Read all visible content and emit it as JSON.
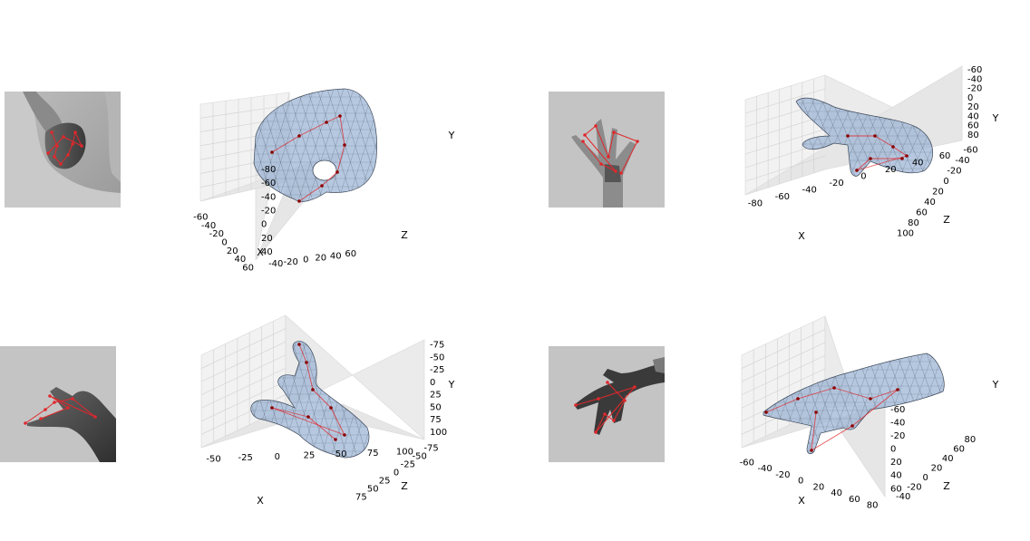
{
  "chart_data": [
    {
      "type": "scatter",
      "panel": "top-left",
      "xlabel": "X",
      "ylabel": "Y",
      "zlabel": "Z",
      "x_ticks": [
        "-60",
        "-40",
        "-20",
        "0",
        "20",
        "40",
        "60"
      ],
      "y_ticks": [
        "-80",
        "-60",
        "-40",
        "-20",
        "0",
        "20",
        "40"
      ],
      "z_ticks": [
        "-40",
        "-20",
        "0",
        "20",
        "40",
        "60"
      ],
      "y_axis_inverted": true
    },
    {
      "type": "scatter",
      "panel": "top-right",
      "xlabel": "X",
      "ylabel": "Y",
      "zlabel": "Z",
      "x_ticks": [
        "-80",
        "-60",
        "-40",
        "-20",
        "0",
        "20",
        "40",
        "60"
      ],
      "y_ticks": [
        "-60",
        "-40",
        "-20",
        "0",
        "20",
        "40",
        "60",
        "80"
      ],
      "z_ticks": [
        "-60",
        "-40",
        "-20",
        "0",
        "20",
        "40",
        "60",
        "80",
        "100"
      ],
      "y_axis_inverted": true
    },
    {
      "type": "scatter",
      "panel": "bottom-left",
      "xlabel": "X",
      "ylabel": "Y",
      "zlabel": "Z",
      "x_ticks": [
        "-50",
        "-25",
        "0",
        "25",
        "50",
        "75",
        "100"
      ],
      "y_ticks": [
        "-75",
        "-50",
        "-25",
        "0",
        "25",
        "50",
        "75",
        "100"
      ],
      "z_ticks": [
        "-75",
        "-50",
        "-25",
        "0",
        "25",
        "50",
        "75"
      ],
      "y_axis_inverted": true
    },
    {
      "type": "scatter",
      "panel": "bottom-right",
      "xlabel": "X",
      "ylabel": "Y",
      "zlabel": "Z",
      "x_ticks": [
        "-60",
        "-40",
        "-20",
        "0",
        "20",
        "40",
        "60",
        "80"
      ],
      "y_ticks": [
        "-60",
        "-40",
        "-20",
        "0",
        "20",
        "40",
        "60"
      ],
      "z_ticks": [
        "-40",
        "-20",
        "0",
        "20",
        "40",
        "60",
        "80"
      ],
      "y_axis_inverted": true
    }
  ],
  "colors": {
    "pane_light": "#f2f2f2",
    "pane_mid": "#e6e6e6",
    "pane_dark": "#ebebeb",
    "grid": "#d0d0d0",
    "mesh_fill": "#9db6d6",
    "mesh_edge": "#3f4a5a",
    "skeleton": "#e0282c",
    "joint": "#8b0000",
    "depth_bg": "#c4c4c4"
  },
  "icons": {
    "depth_thumbnail": "depth-map-hand-icon",
    "mesh": "hand-mesh-icon"
  }
}
